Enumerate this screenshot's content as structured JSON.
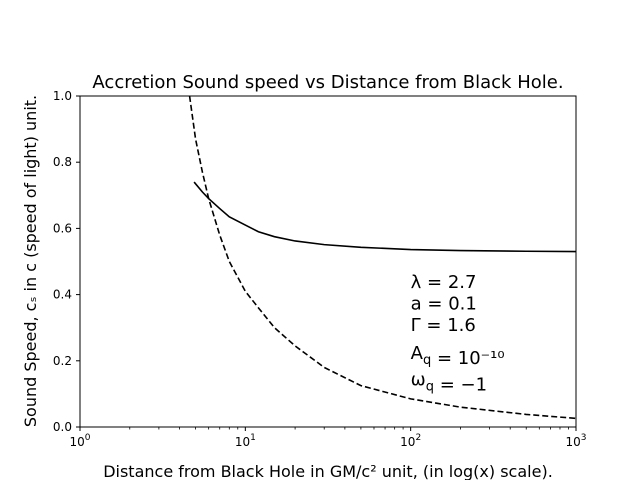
{
  "chart_data": {
    "type": "line",
    "title": "Accretion Sound speed vs Distance from Black Hole.",
    "xlabel": "Distance from Black Hole in GM/c² unit, (in log(x) scale).",
    "ylabel": "Sound Speed, cₛ in c (speed of light) unit.",
    "xscale": "log",
    "xlim": [
      1,
      1000
    ],
    "ylim": [
      0,
      1.0
    ],
    "grid": false,
    "x_ticks": [
      1,
      10,
      100,
      1000
    ],
    "x_tick_labels": [
      {
        "base": "10",
        "exp": "0"
      },
      {
        "base": "10",
        "exp": "1"
      },
      {
        "base": "10",
        "exp": "2"
      },
      {
        "base": "10",
        "exp": "3"
      }
    ],
    "y_ticks": [
      0.0,
      0.2,
      0.4,
      0.6,
      0.8,
      1.0
    ],
    "y_tick_labels": [
      "0.0",
      "0.2",
      "0.4",
      "0.6",
      "0.8",
      "1.0"
    ],
    "series": [
      {
        "style": "solid",
        "color": "#000000",
        "x": [
          4.9,
          5.5,
          6.0,
          7.0,
          8.0,
          10,
          12,
          15,
          20,
          30,
          50,
          100,
          200,
          500,
          1000
        ],
        "y": [
          0.74,
          0.71,
          0.69,
          0.66,
          0.635,
          0.61,
          0.59,
          0.575,
          0.562,
          0.551,
          0.543,
          0.536,
          0.533,
          0.531,
          0.53
        ]
      },
      {
        "style": "dashed",
        "color": "#000000",
        "x": [
          4.6,
          5.0,
          5.5,
          6.0,
          7.0,
          8.0,
          10,
          12,
          15,
          20,
          30,
          50,
          100,
          200,
          500,
          1000
        ],
        "y": [
          1.0,
          0.87,
          0.77,
          0.69,
          0.58,
          0.5,
          0.41,
          0.36,
          0.3,
          0.245,
          0.18,
          0.125,
          0.085,
          0.06,
          0.038,
          0.026
        ]
      }
    ],
    "annotations": [
      {
        "label": "λ = 2.7",
        "x": 100,
        "y": 0.42
      },
      {
        "label": "a = 0.1",
        "x": 100,
        "y": 0.355
      },
      {
        "label": "Γ = 1.6",
        "x": 100,
        "y": 0.29
      },
      {
        "label": "A_q = 10⁻¹⁰",
        "x": 100,
        "y": 0.205
      },
      {
        "label": "ω_q = −1",
        "x": 100,
        "y": 0.125
      }
    ]
  }
}
